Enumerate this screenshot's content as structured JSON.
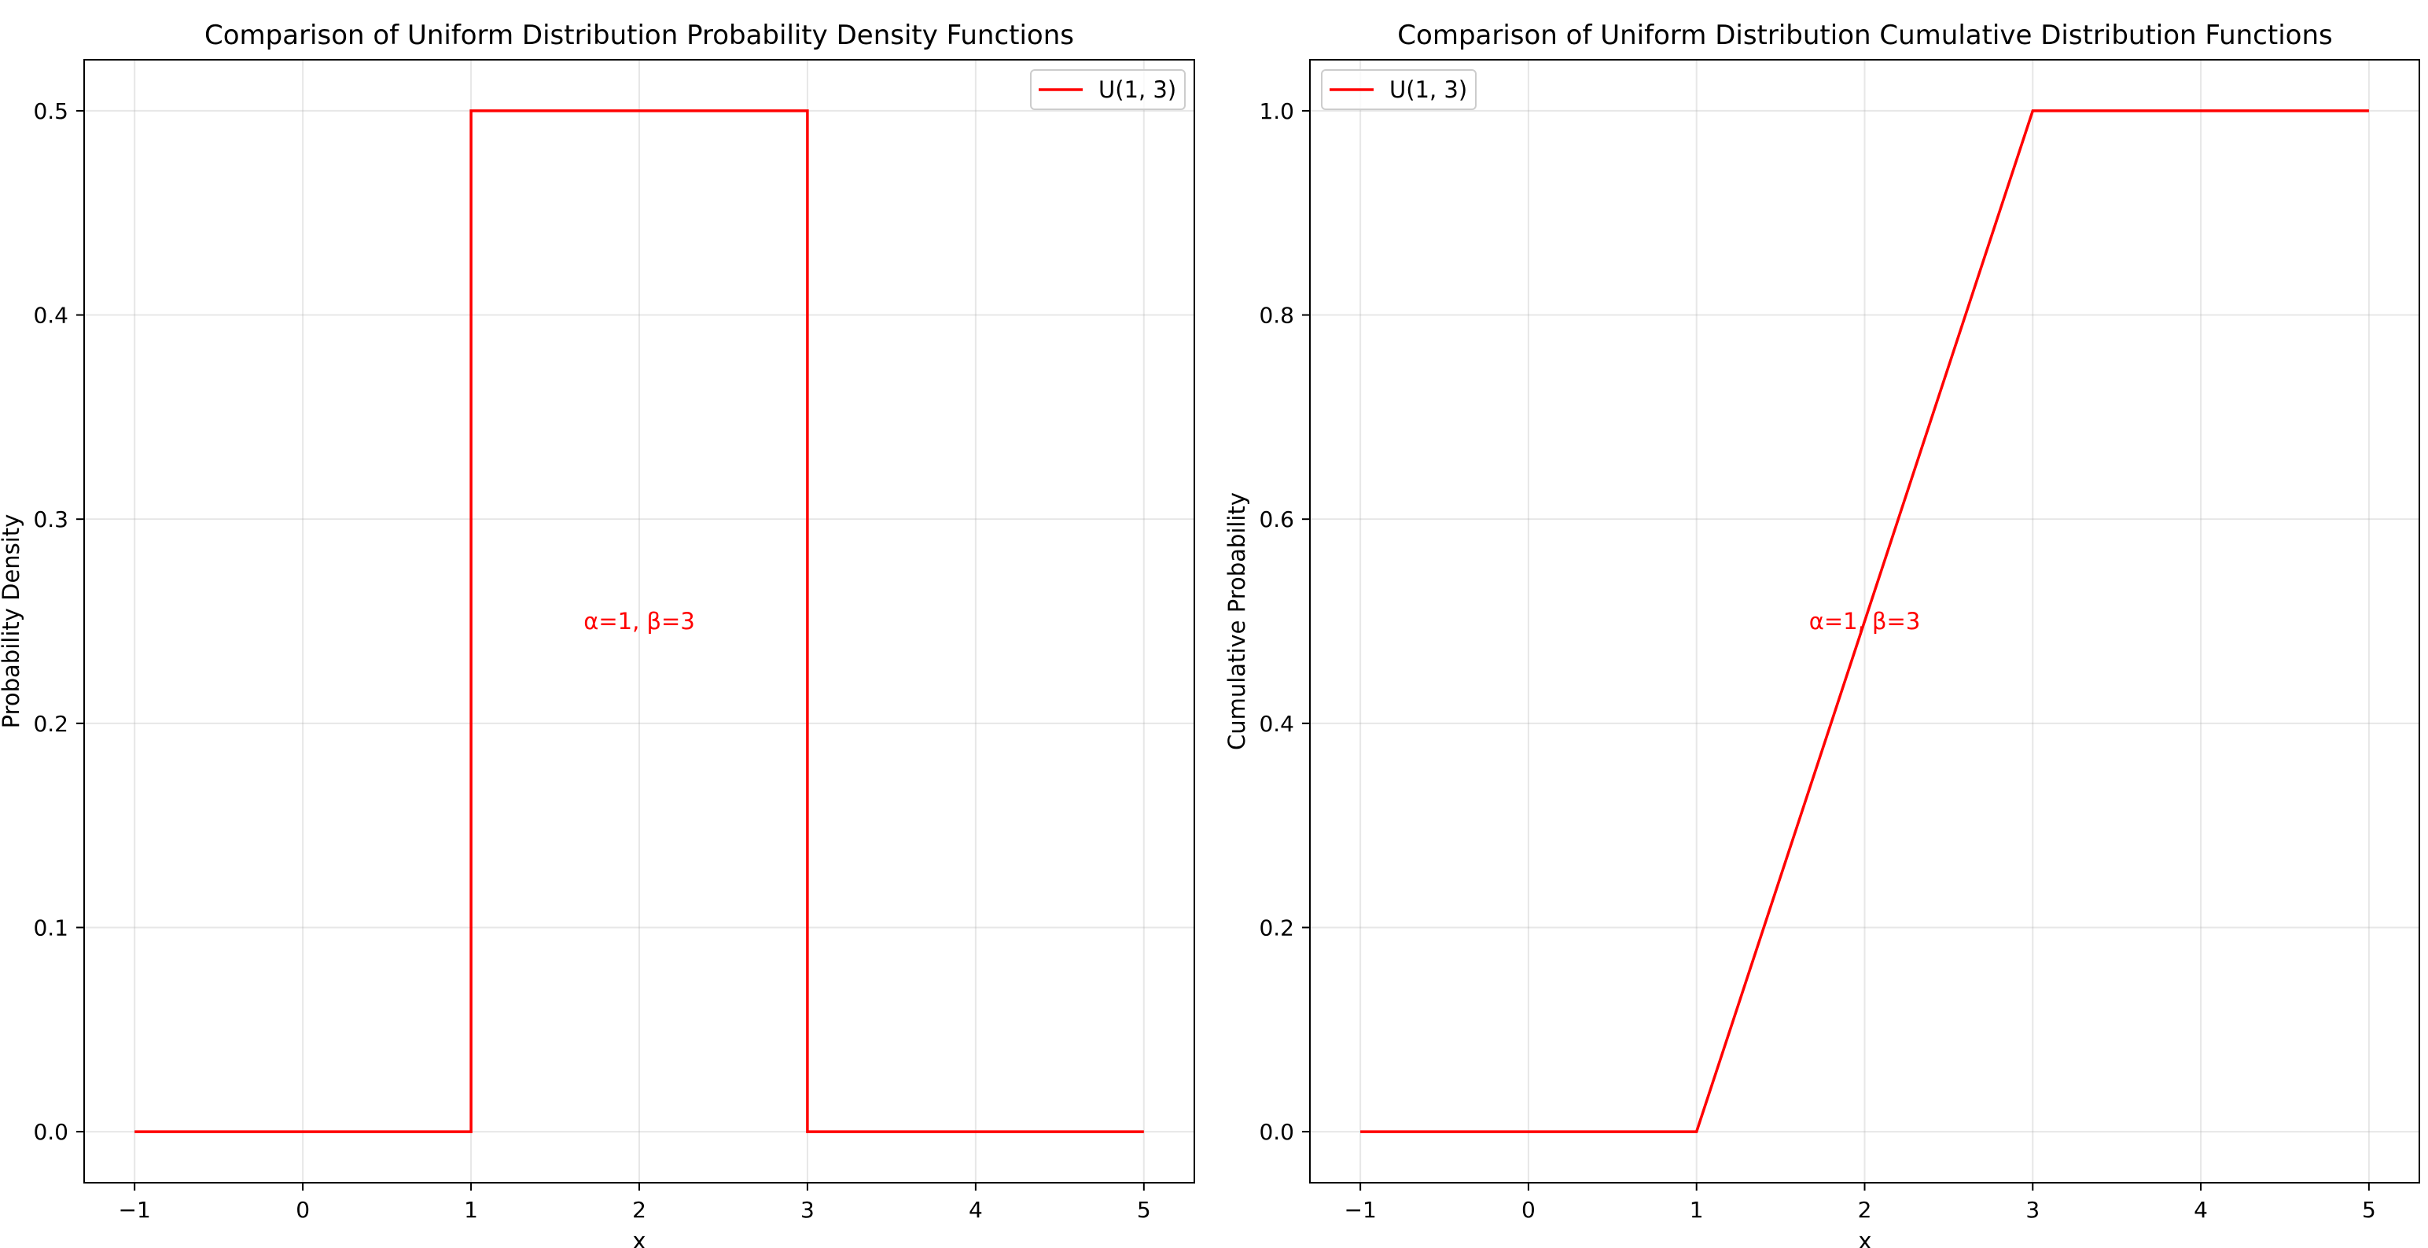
{
  "chart_data": [
    {
      "type": "line",
      "title": "Comparison of Uniform Distribution Probability Density Functions",
      "xlabel": "x",
      "ylabel": "Probability Density",
      "xlim": [
        -1.3,
        5.3
      ],
      "ylim": [
        -0.025,
        0.525
      ],
      "xticks": [
        -1,
        0,
        1,
        2,
        3,
        4,
        5
      ],
      "xtick_labels": [
        "−1",
        "0",
        "1",
        "2",
        "3",
        "4",
        "5"
      ],
      "yticks": [
        0.0,
        0.1,
        0.2,
        0.3,
        0.4,
        0.5
      ],
      "ytick_labels": [
        "0.0",
        "0.1",
        "0.2",
        "0.3",
        "0.4",
        "0.5"
      ],
      "grid": true,
      "legend_position": "upper right",
      "series": [
        {
          "name": "U(1, 3)",
          "color": "#ff0000",
          "x": [
            -1,
            1,
            1,
            3,
            3,
            5
          ],
          "y": [
            0,
            0,
            0.5,
            0.5,
            0,
            0
          ]
        }
      ],
      "annotations": [
        {
          "text": "α=1, β=3",
          "x": 2,
          "y": 0.25,
          "color": "#ff0000"
        }
      ]
    },
    {
      "type": "line",
      "title": "Comparison of Uniform Distribution Cumulative Distribution Functions",
      "xlabel": "x",
      "ylabel": "Cumulative Probability",
      "xlim": [
        -1.3,
        5.3
      ],
      "ylim": [
        -0.05,
        1.05
      ],
      "xticks": [
        -1,
        0,
        1,
        2,
        3,
        4,
        5
      ],
      "xtick_labels": [
        "−1",
        "0",
        "1",
        "2",
        "3",
        "4",
        "5"
      ],
      "yticks": [
        0.0,
        0.2,
        0.4,
        0.6,
        0.8,
        1.0
      ],
      "ytick_labels": [
        "0.0",
        "0.2",
        "0.4",
        "0.6",
        "0.8",
        "1.0"
      ],
      "grid": true,
      "legend_position": "upper left",
      "series": [
        {
          "name": "U(1, 3)",
          "color": "#ff0000",
          "x": [
            -1,
            1,
            3,
            5
          ],
          "y": [
            0,
            0,
            1,
            1
          ]
        }
      ],
      "annotations": [
        {
          "text": "α=1, β=3",
          "x": 2,
          "y": 0.5,
          "color": "#ff0000"
        }
      ]
    }
  ]
}
